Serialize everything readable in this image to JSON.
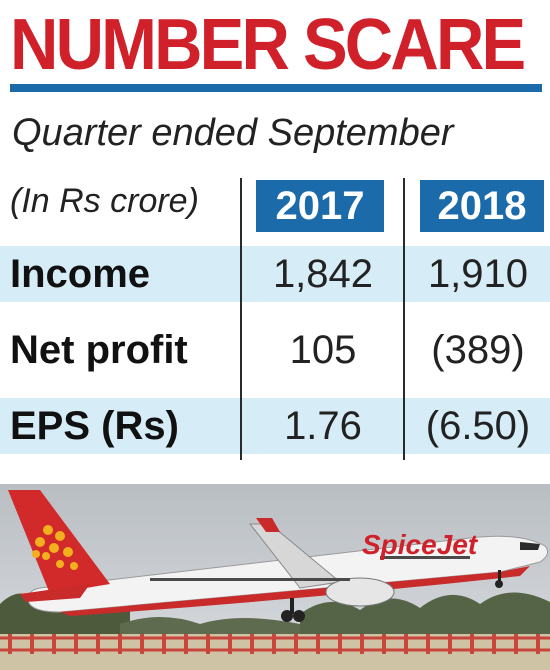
{
  "title": "NUMBER SCARE",
  "subtitle": "Quarter ended September",
  "unit_label": "(In Rs crore)",
  "years": [
    "2017",
    "2018"
  ],
  "rows": [
    {
      "label": "Income",
      "values": [
        "1,842",
        "1,910"
      ]
    },
    {
      "label": "Net profit",
      "values": [
        "105",
        "(389)"
      ]
    },
    {
      "label": "EPS (Rs)",
      "values": [
        "1.76",
        "(6.50)"
      ]
    }
  ],
  "photo": {
    "brand_text": "SpiceJet",
    "colors": {
      "brand_red": "#d0202a",
      "accent_blue": "#1b6aa9",
      "row_shade": "#d6ecf6",
      "sky": "#c9cdd1"
    }
  }
}
